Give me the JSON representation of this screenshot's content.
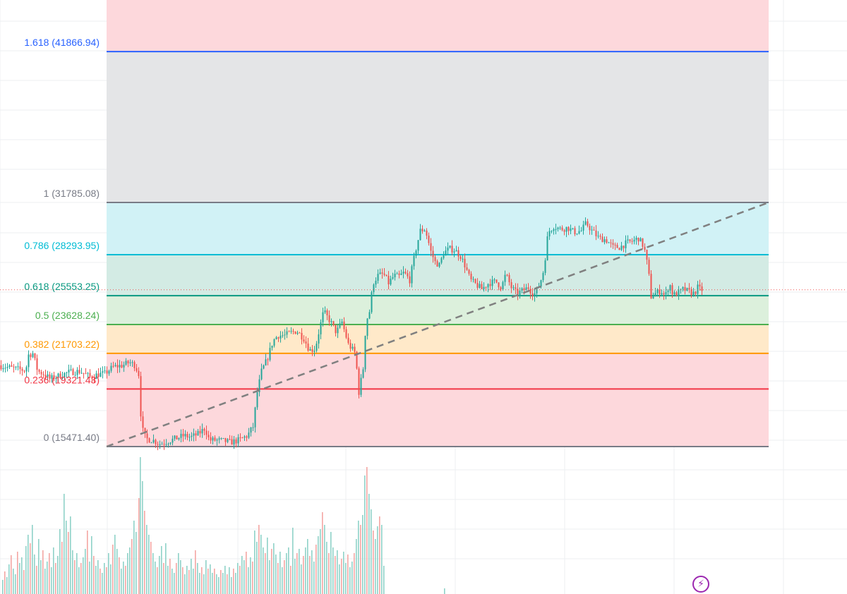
{
  "colors": {
    "up": "#26a69a",
    "down": "#ef5350",
    "grid": "#eceff2",
    "trendline": "#808080",
    "price_line": "#ef5350"
  },
  "icons": {
    "flash": "lightning-bolt-icon"
  },
  "chart_data": {
    "type": "candlestick",
    "title": "",
    "xlabel": "",
    "ylabel": "",
    "current_price": 25950,
    "fib_retracement": {
      "from": 15471.4,
      "to": 31785.08,
      "levels": [
        {
          "ratio": 1.618,
          "price": 41866.94,
          "label": "1.618 (41866.94)",
          "line_color": "#2962ff",
          "fill_color": "#d2deff"
        },
        {
          "ratio": 1,
          "price": 31785.08,
          "label": "1 (31785.08)",
          "line_color": "#787b86",
          "fill_color": "#e4e5e7"
        },
        {
          "ratio": 0.786,
          "price": 28293.95,
          "label": "0.786 (28293.95)",
          "line_color": "#00bcd4",
          "fill_color": "#d1f2f6"
        },
        {
          "ratio": 0.618,
          "price": 25553.25,
          "label": "0.618 (25553.25)",
          "line_color": "#089981",
          "fill_color": "#d3ebe4"
        },
        {
          "ratio": 0.5,
          "price": 23628.24,
          "label": "0.5 (23628.24)",
          "line_color": "#4caf50",
          "fill_color": "#dcf0dc"
        },
        {
          "ratio": 0.382,
          "price": 21703.22,
          "label": "0.382 (21703.22)",
          "line_color": "#ff9800",
          "fill_color": "#ffe9c9"
        },
        {
          "ratio": 0.236,
          "price": 19321.43,
          "label": "0.236 (19321.43)",
          "line_color": "#f23645",
          "fill_color": "#fdd8dc"
        },
        {
          "ratio": 0,
          "price": 15471.4,
          "label": "0 (15471.40)",
          "line_color": "#787b86",
          "fill_color": "#fdd8dc"
        }
      ]
    },
    "price_path": [
      [
        0,
        20900
      ],
      [
        20,
        20700
      ],
      [
        38,
        20550
      ],
      [
        42,
        21600
      ],
      [
        48,
        21700
      ],
      [
        55,
        20500
      ],
      [
        65,
        20300
      ],
      [
        72,
        20000
      ],
      [
        85,
        20200
      ],
      [
        100,
        20450
      ],
      [
        115,
        20500
      ],
      [
        130,
        20100
      ],
      [
        140,
        20300
      ],
      [
        150,
        20350
      ],
      [
        162,
        20800
      ],
      [
        175,
        20900
      ],
      [
        185,
        21100
      ],
      [
        193,
        20900
      ],
      [
        198,
        20300
      ],
      [
        202,
        16800
      ],
      [
        208,
        16000
      ],
      [
        218,
        15900
      ],
      [
        228,
        15650
      ],
      [
        238,
        15800
      ],
      [
        250,
        16000
      ],
      [
        262,
        16200
      ],
      [
        272,
        16100
      ],
      [
        282,
        16300
      ],
      [
        292,
        16700
      ],
      [
        298,
        15900
      ],
      [
        308,
        15900
      ],
      [
        318,
        15850
      ],
      [
        328,
        15750
      ],
      [
        340,
        15900
      ],
      [
        352,
        16200
      ],
      [
        360,
        16800
      ],
      [
        366,
        19100
      ],
      [
        372,
        20500
      ],
      [
        380,
        21300
      ],
      [
        388,
        22500
      ],
      [
        395,
        22900
      ],
      [
        405,
        22900
      ],
      [
        414,
        23100
      ],
      [
        422,
        23200
      ],
      [
        432,
        22700
      ],
      [
        440,
        21900
      ],
      [
        448,
        22000
      ],
      [
        454,
        23300
      ],
      [
        460,
        24500
      ],
      [
        470,
        23800
      ],
      [
        478,
        23100
      ],
      [
        486,
        23800
      ],
      [
        495,
        22300
      ],
      [
        505,
        21700
      ],
      [
        510,
        19100
      ],
      [
        516,
        20700
      ],
      [
        520,
        23800
      ],
      [
        525,
        24500
      ],
      [
        530,
        26400
      ],
      [
        537,
        26900
      ],
      [
        545,
        27000
      ],
      [
        552,
        26400
      ],
      [
        560,
        26900
      ],
      [
        566,
        26800
      ],
      [
        574,
        27100
      ],
      [
        582,
        26600
      ],
      [
        590,
        28500
      ],
      [
        597,
        29900
      ],
      [
        604,
        30000
      ],
      [
        612,
        28500
      ],
      [
        618,
        27800
      ],
      [
        624,
        27600
      ],
      [
        630,
        28400
      ],
      [
        638,
        28700
      ],
      [
        646,
        28600
      ],
      [
        654,
        28200
      ],
      [
        660,
        27600
      ],
      [
        668,
        26600
      ],
      [
        676,
        26300
      ],
      [
        684,
        26000
      ],
      [
        694,
        26400
      ],
      [
        704,
        26500
      ],
      [
        712,
        26100
      ],
      [
        718,
        27000
      ],
      [
        726,
        26100
      ],
      [
        734,
        25700
      ],
      [
        742,
        25900
      ],
      [
        750,
        26100
      ],
      [
        758,
        25600
      ],
      [
        766,
        26300
      ],
      [
        772,
        27300
      ],
      [
        778,
        29800
      ],
      [
        786,
        30200
      ],
      [
        796,
        30000
      ],
      [
        806,
        30100
      ],
      [
        815,
        29800
      ],
      [
        825,
        29900
      ],
      [
        832,
        30400
      ],
      [
        840,
        29900
      ],
      [
        850,
        29400
      ],
      [
        860,
        29300
      ],
      [
        870,
        28800
      ],
      [
        880,
        28800
      ],
      [
        890,
        29100
      ],
      [
        898,
        29200
      ],
      [
        906,
        29400
      ],
      [
        914,
        28800
      ],
      [
        920,
        27300
      ],
      [
        924,
        25500
      ],
      [
        930,
        25700
      ],
      [
        938,
        25900
      ],
      [
        944,
        25500
      ],
      [
        950,
        26400
      ],
      [
        955,
        25600
      ],
      [
        962,
        25700
      ],
      [
        970,
        26000
      ],
      [
        978,
        25800
      ],
      [
        985,
        25700
      ],
      [
        990,
        26100
      ],
      [
        994,
        25950
      ]
    ],
    "volume": [
      [
        3,
        20
      ],
      [
        6,
        32
      ],
      [
        9,
        24
      ],
      [
        12,
        42
      ],
      [
        15,
        55
      ],
      [
        18,
        36
      ],
      [
        21,
        28
      ],
      [
        24,
        60
      ],
      [
        27,
        44
      ],
      [
        30,
        52
      ],
      [
        33,
        34
      ],
      [
        36,
        68
      ],
      [
        39,
        84
      ],
      [
        42,
        72
      ],
      [
        45,
        98
      ],
      [
        48,
        56
      ],
      [
        51,
        40
      ],
      [
        54,
        78
      ],
      [
        57,
        48
      ],
      [
        60,
        62
      ],
      [
        63,
        36
      ],
      [
        66,
        46
      ],
      [
        69,
        58
      ],
      [
        72,
        38
      ],
      [
        75,
        66
      ],
      [
        78,
        44
      ],
      [
        81,
        54
      ],
      [
        84,
        92
      ],
      [
        87,
        74
      ],
      [
        90,
        142
      ],
      [
        93,
        104
      ],
      [
        96,
        88
      ],
      [
        99,
        110
      ],
      [
        102,
        62
      ],
      [
        105,
        48
      ],
      [
        108,
        58
      ],
      [
        111,
        38
      ],
      [
        114,
        44
      ],
      [
        117,
        52
      ],
      [
        120,
        64
      ],
      [
        123,
        90
      ],
      [
        126,
        46
      ],
      [
        129,
        82
      ],
      [
        132,
        54
      ],
      [
        135,
        40
      ],
      [
        138,
        48
      ],
      [
        141,
        36
      ],
      [
        144,
        30
      ],
      [
        147,
        44
      ],
      [
        150,
        38
      ],
      [
        153,
        58
      ],
      [
        156,
        42
      ],
      [
        159,
        70
      ],
      [
        162,
        84
      ],
      [
        165,
        64
      ],
      [
        168,
        52
      ],
      [
        171,
        36
      ],
      [
        174,
        46
      ],
      [
        177,
        40
      ],
      [
        180,
        58
      ],
      [
        183,
        66
      ],
      [
        186,
        78
      ],
      [
        189,
        104
      ],
      [
        192,
        88
      ],
      [
        196,
        136
      ],
      [
        198,
        194
      ],
      [
        201,
        160
      ],
      [
        204,
        118
      ],
      [
        207,
        98
      ],
      [
        210,
        84
      ],
      [
        213,
        74
      ],
      [
        216,
        58
      ],
      [
        219,
        46
      ],
      [
        222,
        38
      ],
      [
        225,
        54
      ],
      [
        228,
        68
      ],
      [
        231,
        44
      ],
      [
        234,
        72
      ],
      [
        237,
        40
      ],
      [
        240,
        50
      ],
      [
        243,
        36
      ],
      [
        246,
        30
      ],
      [
        249,
        44
      ],
      [
        252,
        58
      ],
      [
        255,
        48
      ],
      [
        258,
        38
      ],
      [
        261,
        28
      ],
      [
        264,
        40
      ],
      [
        267,
        34
      ],
      [
        270,
        50
      ],
      [
        273,
        36
      ],
      [
        276,
        62
      ],
      [
        279,
        44
      ],
      [
        282,
        30
      ],
      [
        285,
        38
      ],
      [
        288,
        28
      ],
      [
        291,
        48
      ],
      [
        294,
        36
      ],
      [
        297,
        42
      ],
      [
        300,
        30
      ],
      [
        303,
        36
      ],
      [
        306,
        28
      ],
      [
        309,
        24
      ],
      [
        312,
        34
      ],
      [
        315,
        30
      ],
      [
        318,
        40
      ],
      [
        321,
        28
      ],
      [
        324,
        38
      ],
      [
        327,
        24
      ],
      [
        330,
        36
      ],
      [
        333,
        30
      ],
      [
        336,
        44
      ],
      [
        339,
        40
      ],
      [
        342,
        54
      ],
      [
        345,
        48
      ],
      [
        348,
        60
      ],
      [
        351,
        38
      ],
      [
        354,
        52
      ],
      [
        357,
        46
      ],
      [
        360,
        90
      ],
      [
        363,
        74
      ],
      [
        366,
        98
      ],
      [
        369,
        84
      ],
      [
        372,
        66
      ],
      [
        375,
        58
      ],
      [
        378,
        80
      ],
      [
        381,
        48
      ],
      [
        384,
        64
      ],
      [
        387,
        72
      ],
      [
        390,
        56
      ],
      [
        393,
        44
      ],
      [
        396,
        60
      ],
      [
        399,
        38
      ],
      [
        402,
        48
      ],
      [
        405,
        58
      ],
      [
        408,
        66
      ],
      [
        411,
        40
      ],
      [
        414,
        94
      ],
      [
        417,
        50
      ],
      [
        420,
        58
      ],
      [
        423,
        64
      ],
      [
        426,
        42
      ],
      [
        429,
        54
      ],
      [
        432,
        66
      ],
      [
        435,
        78
      ],
      [
        438,
        54
      ],
      [
        441,
        62
      ],
      [
        444,
        46
      ],
      [
        447,
        70
      ],
      [
        450,
        82
      ],
      [
        453,
        92
      ],
      [
        456,
        116
      ],
      [
        459,
        98
      ],
      [
        462,
        74
      ],
      [
        465,
        58
      ],
      [
        468,
        88
      ],
      [
        471,
        66
      ],
      [
        474,
        54
      ],
      [
        477,
        62
      ],
      [
        480,
        42
      ],
      [
        483,
        50
      ],
      [
        486,
        60
      ],
      [
        489,
        44
      ],
      [
        492,
        56
      ],
      [
        495,
        38
      ],
      [
        498,
        46
      ],
      [
        501,
        58
      ],
      [
        504,
        78
      ],
      [
        507,
        104
      ],
      [
        510,
        98
      ],
      [
        513,
        112
      ],
      [
        516,
        168
      ],
      [
        519,
        180
      ],
      [
        522,
        142
      ],
      [
        525,
        120
      ],
      [
        528,
        90
      ],
      [
        531,
        78
      ],
      [
        534,
        96
      ],
      [
        537,
        110
      ],
      [
        540,
        98
      ],
      [
        543,
        40
      ]
    ]
  }
}
